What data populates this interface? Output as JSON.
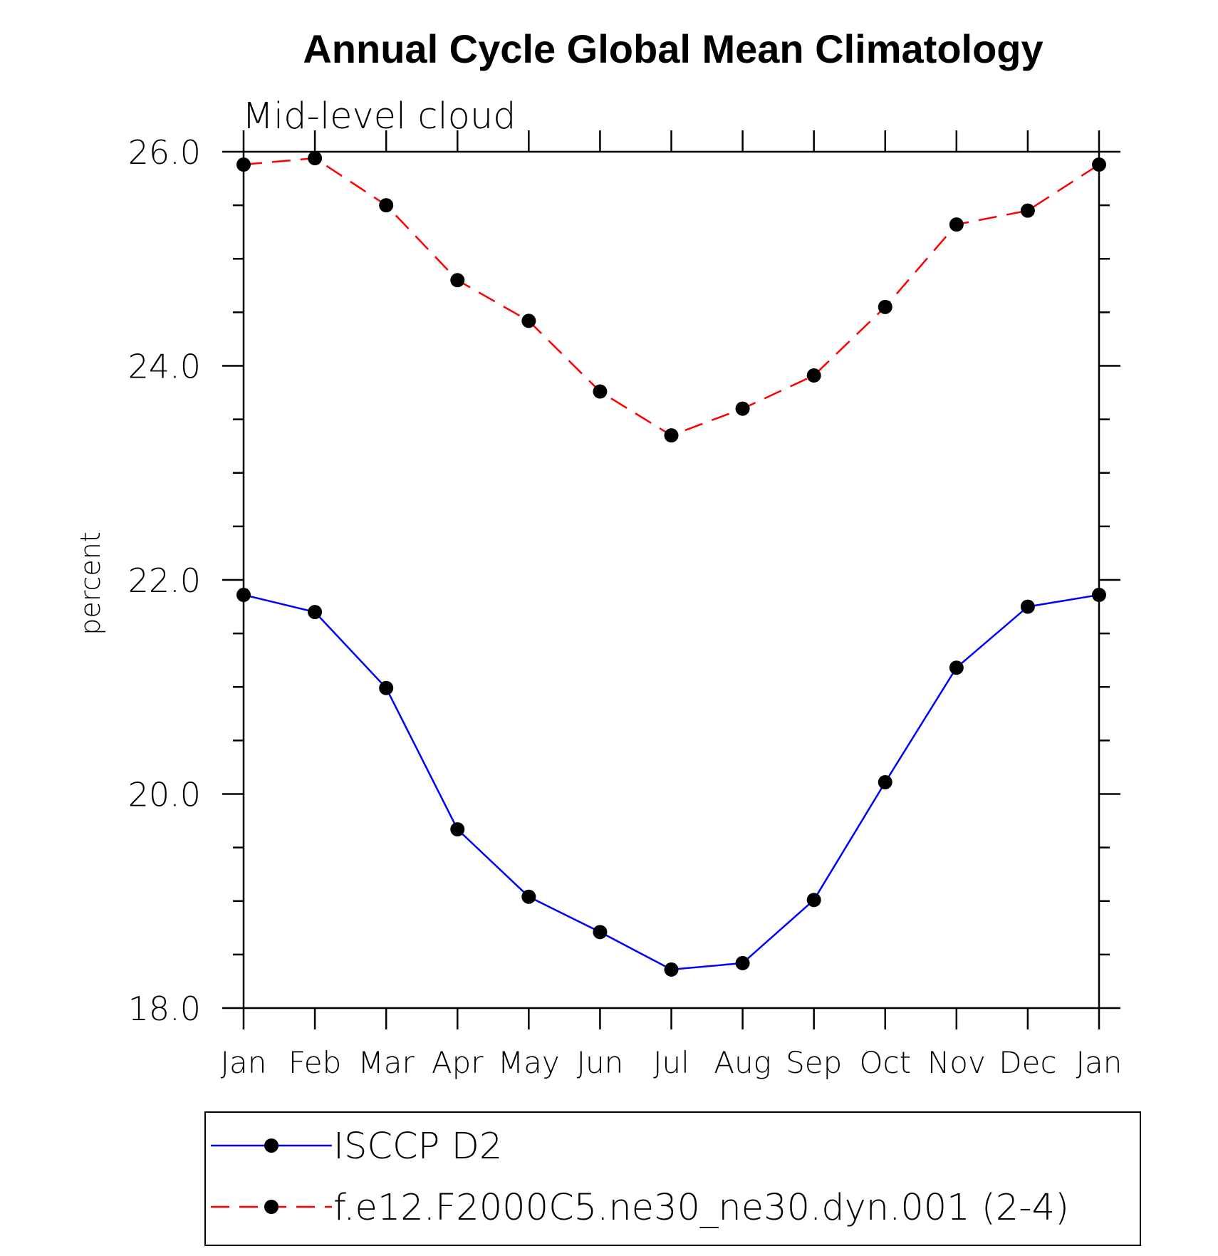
{
  "chart_data": {
    "type": "line",
    "title": "Annual Cycle Global Mean Climatology",
    "subtitle": "Mid-level cloud",
    "ylabel": "percent",
    "xlabel": "",
    "categories": [
      "Jan",
      "Feb",
      "Mar",
      "Apr",
      "May",
      "Jun",
      "Jul",
      "Aug",
      "Sep",
      "Oct",
      "Nov",
      "Dec",
      "Jan"
    ],
    "ylim": [
      18.0,
      26.0
    ],
    "yticks": [
      "18.0",
      "20.0",
      "22.0",
      "24.0",
      "26.0"
    ],
    "grid": false,
    "legend_position": "bottom",
    "series": [
      {
        "name": "ISCCP D2",
        "color": "#0000ff",
        "line_style": "solid",
        "marker": "filled-circle",
        "values": [
          21.86,
          21.7,
          20.99,
          19.67,
          19.04,
          18.71,
          18.36,
          18.42,
          19.01,
          20.11,
          21.18,
          21.75,
          21.86
        ]
      },
      {
        "name": "f.e12.F2000C5.ne30_ne30.dyn.001 (2-4)",
        "color": "#ff0000",
        "line_style": "dashed",
        "marker": "filled-circle",
        "values": [
          25.88,
          25.94,
          25.5,
          24.8,
          24.42,
          23.76,
          23.35,
          23.6,
          23.91,
          24.55,
          25.32,
          25.45,
          25.88
        ]
      }
    ]
  }
}
